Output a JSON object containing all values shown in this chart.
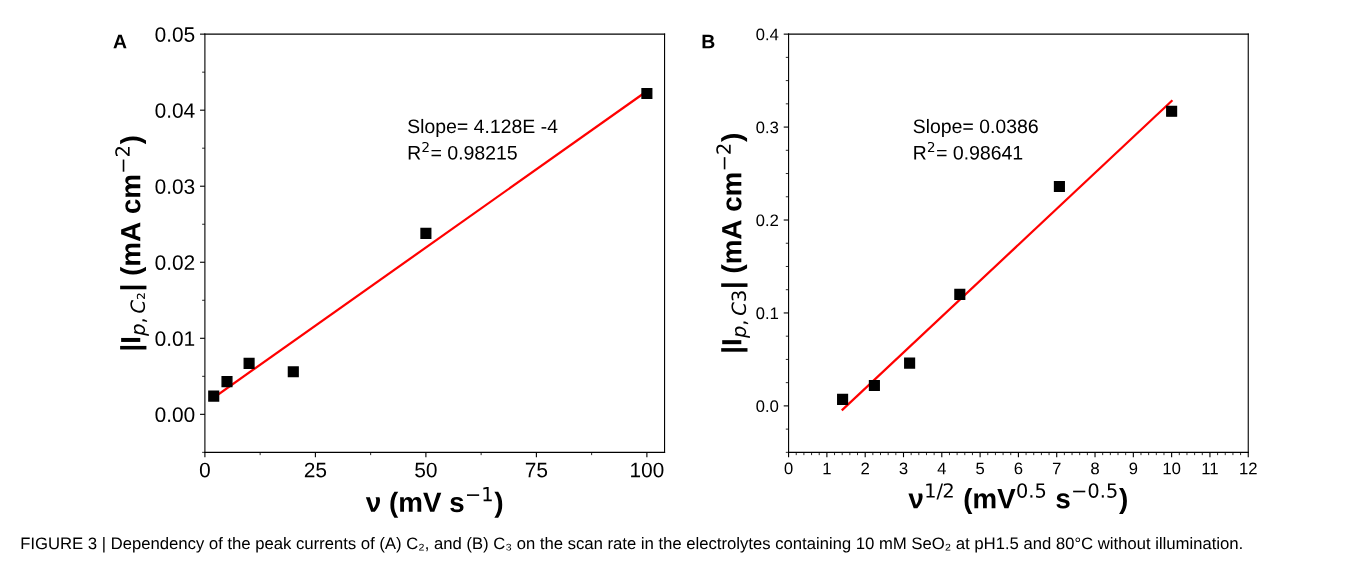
{
  "chart_data": [
    {
      "type": "scatter",
      "title": "A",
      "xlabel": "ν (mV s$^{−1}$)",
      "ylabel": "|I$_{p,C₂}$| (mA cm$^{−2}$)",
      "xlim": [
        0,
        104
      ],
      "xticks": [
        0,
        25,
        50,
        75,
        100
      ],
      "ylim": [
        -0.005,
        0.05
      ],
      "yticks": [
        {
          "value": 0,
          "label": "0.00"
        },
        0.01,
        0.02,
        0.03,
        0.04,
        0.05
      ],
      "grid": false,
      "legend": false,
      "marker": "square",
      "annotations": [
        "Slope= 4.128E -4\nR$^{2}$= 0.98215",
        "FIGURE 3 | Dependency of the peak currents of (A) C₂, and (B) C₃ on the scan rate in the electrolytes containing 10 mM SeO₂ at pH1.5 and 80°C without illumination."
      ],
      "series": [
        {
          "color": "#000000",
          "x": [
            2,
            5,
            10,
            20,
            50,
            100
          ],
          "values": [
            0.0024,
            0.0043,
            0.0067,
            0.0056,
            0.0238,
            0.0422
          ]
        },
        {
          "type": "line",
          "color": "#ff0000",
          "x": [
            2,
            100
          ],
          "values": [
            0.0022,
            0.0425
          ],
          "marker": "none",
          "line_style": "solid"
        }
      ]
    },
    {
      "type": "scatter",
      "title": "B",
      "xlabel": "ν$^{1/2}$ (mV$^{0.5}$ s$^{−0.5}$)",
      "ylabel": "|I$_{p,C3}$| (mA cm$^{−2}$)",
      "xlim": [
        0,
        12
      ],
      "xticks": [
        0,
        1,
        2,
        3,
        4,
        5,
        6,
        7,
        8,
        9,
        10,
        11,
        12
      ],
      "ylim": [
        -0.05,
        0.4
      ],
      "yticks": [
        {
          "value": 0,
          "label": "0.0"
        },
        0.1,
        0.2,
        0.3,
        0.4
      ],
      "grid": false,
      "legend": false,
      "marker": "square",
      "annotations": [
        "Slope= 0.0386\nR$^{2}$= 0.98641"
      ],
      "series": [
        {
          "color": "#000000",
          "x": [
            1.41,
            2.24,
            3.16,
            4.47,
            7.07,
            10
          ],
          "values": [
            0.007,
            0.022,
            0.046,
            0.12,
            0.236,
            0.317
          ]
        },
        {
          "type": "line",
          "color": "#ff0000",
          "x": [
            1.41,
            10
          ],
          "values": [
            -0.004,
            0.328
          ],
          "marker": "none",
          "line_style": "solid"
        }
      ]
    }
  ]
}
